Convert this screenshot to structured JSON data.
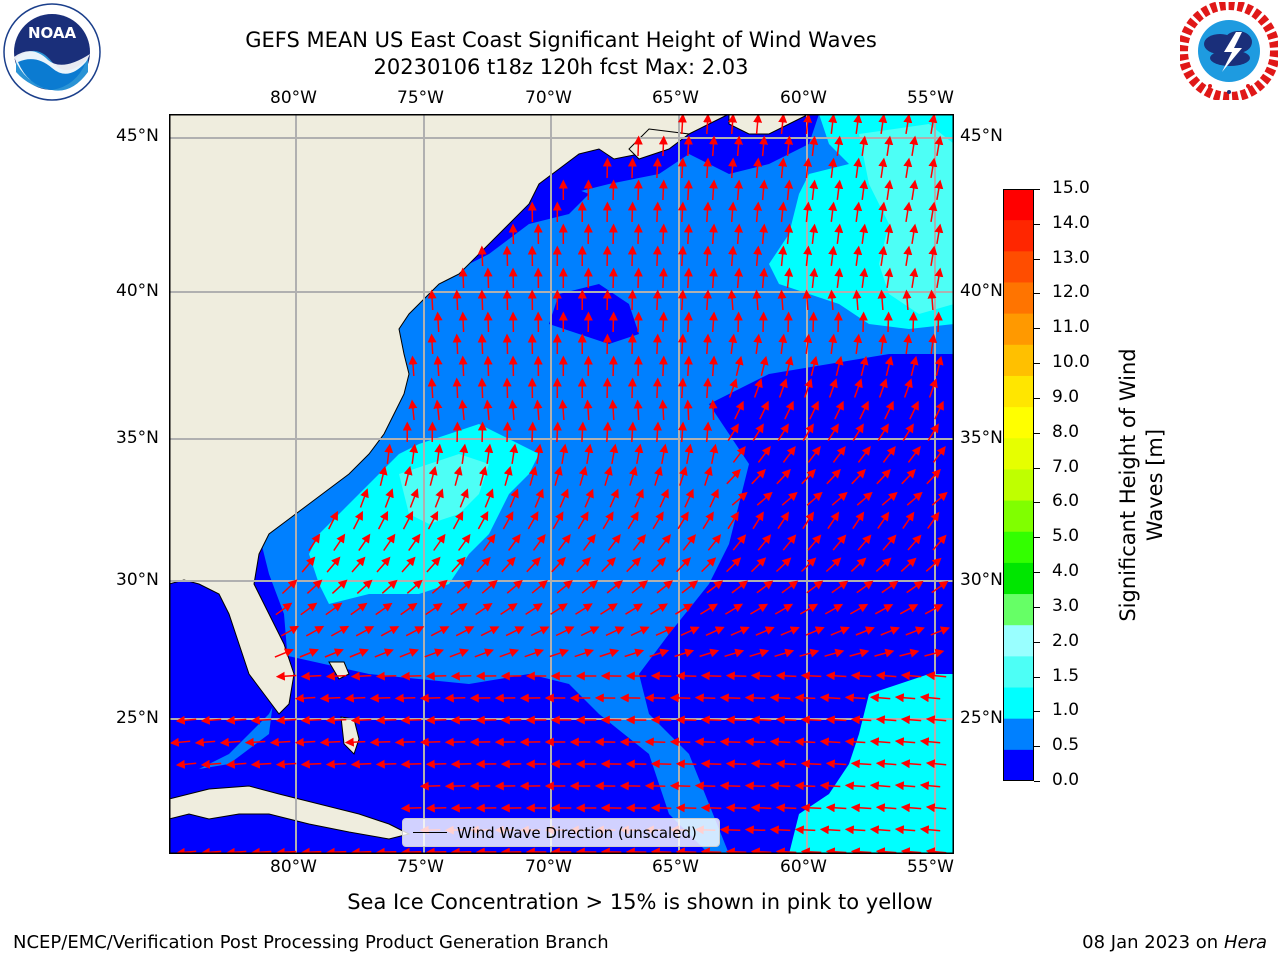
{
  "header": {
    "title_line1": "GEFS MEAN US East Coast Significant Height of Wind Waves",
    "title_line2": "20230106 t18z 120h fcst   Max: 2.03"
  },
  "logos": {
    "left": {
      "text": "NOAA",
      "ring_text": "NATIONAL OCEANIC AND ATMOSPHERIC ADMINISTRATION · U.S. DEPARTMENT OF COMMERCE"
    },
    "right": {
      "ring_text": "NATIONAL WEATHER SERVICE"
    }
  },
  "map": {
    "lon_labels": [
      "80°W",
      "75°W",
      "70°W",
      "65°W",
      "60°W",
      "55°W"
    ],
    "lat_labels": [
      "45°N",
      "40°N",
      "35°N",
      "30°N",
      "25°N"
    ],
    "colors": {
      "land": "#efedde",
      "wave_0_0_5": "#0000ff",
      "wave_0_5_1_0": "#0080ff",
      "wave_1_0_1_5": "#00ffff",
      "wave_1_5_2_0": "#4dfff6",
      "arrow": "#ff0000",
      "grid": "#b0b0b0"
    },
    "legend_label": "Wind Wave Direction (unscaled)"
  },
  "colorbar": {
    "tick_labels": [
      "15.0",
      "14.0",
      "13.0",
      "12.0",
      "11.0",
      "10.0",
      "9.0",
      "8.0",
      "7.0",
      "6.0",
      "5.0",
      "4.0",
      "3.0",
      "2.0",
      "1.5",
      "1.0",
      "0.5",
      "0.0"
    ],
    "colors_top_to_bottom": [
      "#ff0000",
      "#ff2600",
      "#ff4d00",
      "#ff7400",
      "#ff9900",
      "#ffc000",
      "#ffe600",
      "#ffff00",
      "#e6ff00",
      "#bfff00",
      "#80ff00",
      "#33ff00",
      "#00e600",
      "#66ff66",
      "#99ffff",
      "#4dfff6",
      "#00ffff",
      "#0080ff",
      "#0000ff"
    ],
    "title": "Significant Height of Wind Waves [m]"
  },
  "footer": {
    "note": "Sea Ice Concentration > 15% is shown in pink to yellow",
    "left": "NCEP/EMC/Verification Post Processing Product Generation Branch",
    "right_prefix": "08 Jan 2023 on ",
    "right_host": "Hera"
  }
}
